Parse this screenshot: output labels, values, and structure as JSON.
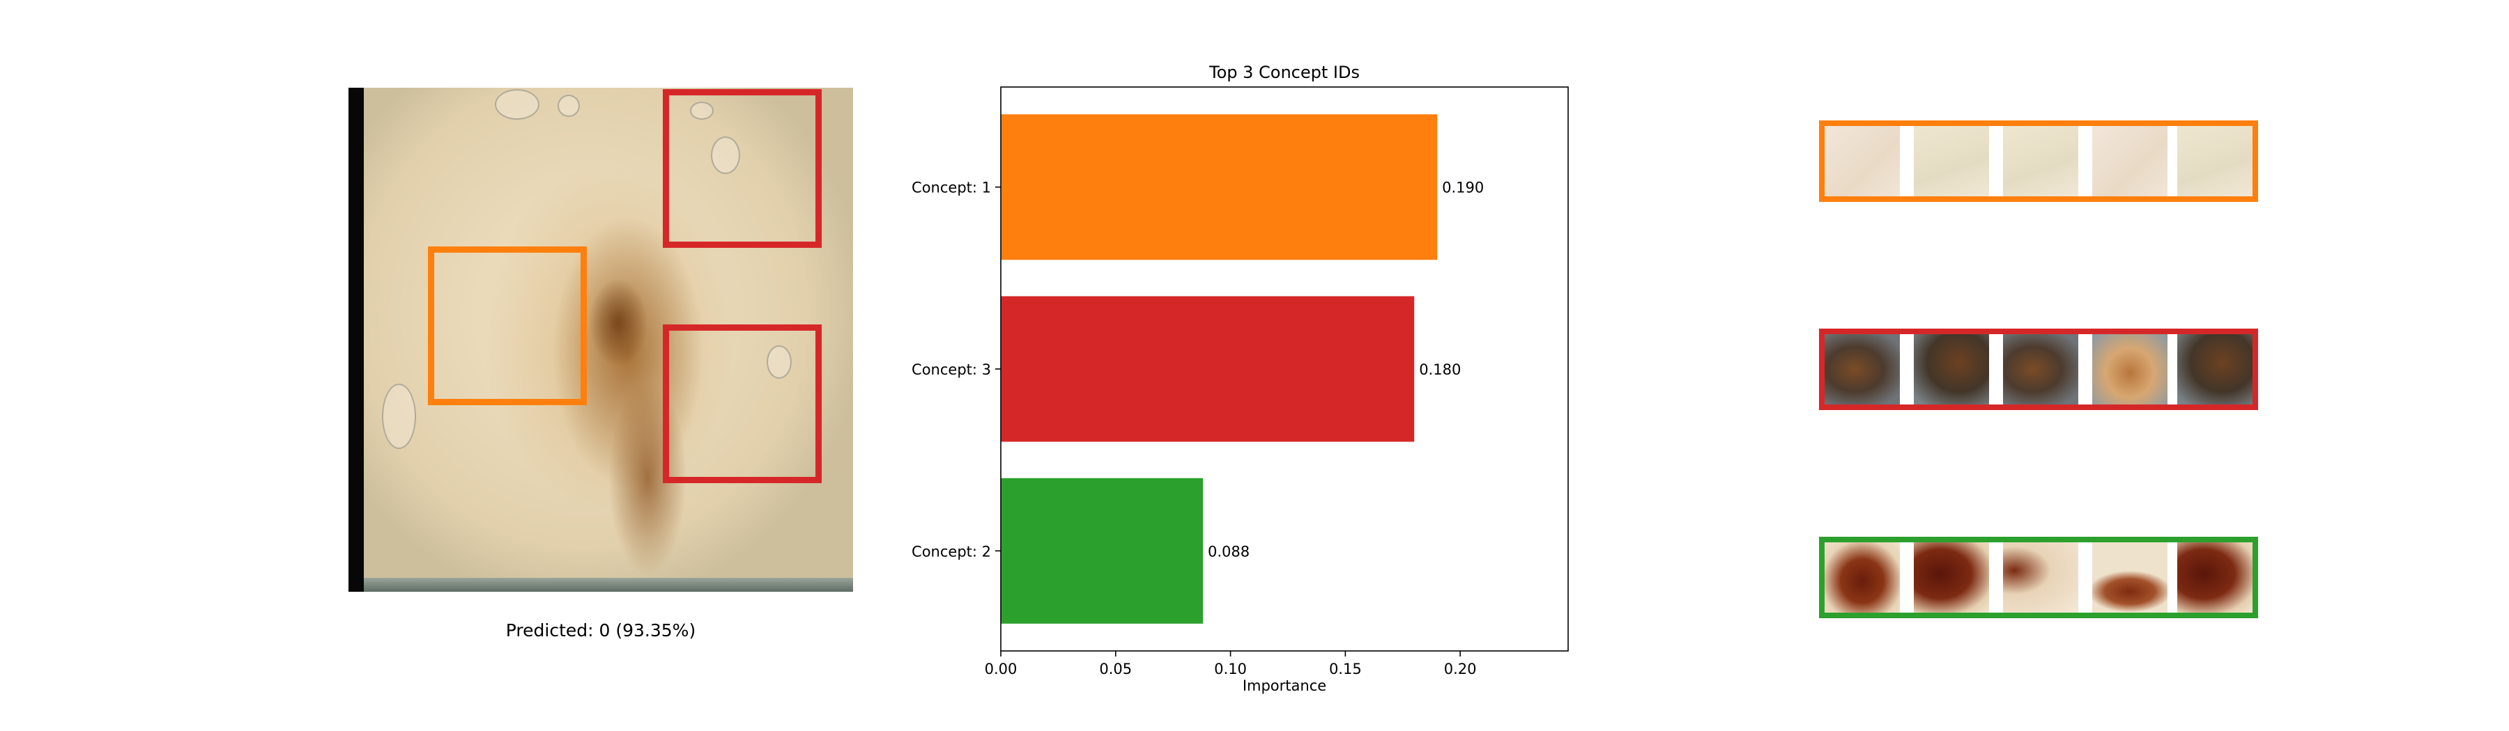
{
  "left_panel": {
    "caption": "Predicted: 0 (93.35%)",
    "box_colors": [
      "#ff7f0e",
      "#d62728",
      "#d62728"
    ]
  },
  "chart_data": {
    "type": "bar",
    "orientation": "horizontal",
    "title": "Top 3 Concept IDs",
    "xlabel": "Importance",
    "ylabel": "",
    "categories": [
      "Concept: 1",
      "Concept: 3",
      "Concept: 2"
    ],
    "values": [
      0.19,
      0.18,
      0.088
    ],
    "value_labels": [
      "0.190",
      "0.180",
      "0.088"
    ],
    "colors": [
      "#ff7f0e",
      "#d62728",
      "#2ca02c"
    ],
    "xlim": [
      0,
      0.247
    ],
    "xticks": [
      0.0,
      0.05,
      0.1,
      0.15,
      0.2
    ],
    "xtick_labels": [
      "0.00",
      "0.05",
      "0.10",
      "0.15",
      "0.20"
    ],
    "grid": false,
    "legend": "none"
  },
  "concept_strips": [
    {
      "concept": "Concept: 1",
      "color": "#ff7f0e"
    },
    {
      "concept": "Concept: 3",
      "color": "#d62728"
    },
    {
      "concept": "Concept: 2",
      "color": "#2ca02c"
    }
  ]
}
